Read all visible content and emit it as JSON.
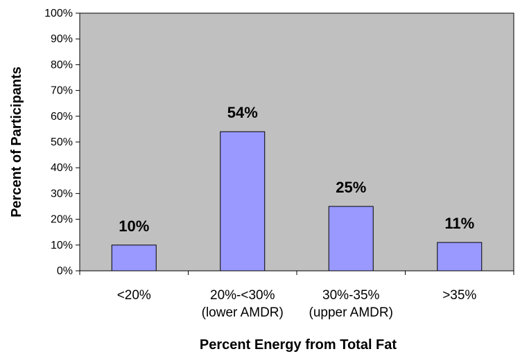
{
  "chart_data": {
    "type": "bar",
    "categories": [
      [
        "<20%"
      ],
      [
        "20%-<30%",
        "(lower AMDR)"
      ],
      [
        "30%-35%",
        "(upper AMDR)"
      ],
      [
        ">35%"
      ]
    ],
    "values": [
      10,
      54,
      25,
      11
    ],
    "data_labels": [
      "10%",
      "54%",
      "25%",
      "11%"
    ],
    "xlabel": "Percent Energy from Total Fat",
    "ylabel": "Percent of Participants",
    "ylim": [
      0,
      100
    ],
    "yticks": [
      "0%",
      "10%",
      "20%",
      "30%",
      "40%",
      "50%",
      "60%",
      "70%",
      "80%",
      "90%",
      "100%"
    ],
    "grid": false,
    "legend": "none",
    "colors": {
      "plot_background": "#c0c0c0",
      "bar_fill": "#9999ff",
      "bar_stroke": "#000000"
    }
  }
}
